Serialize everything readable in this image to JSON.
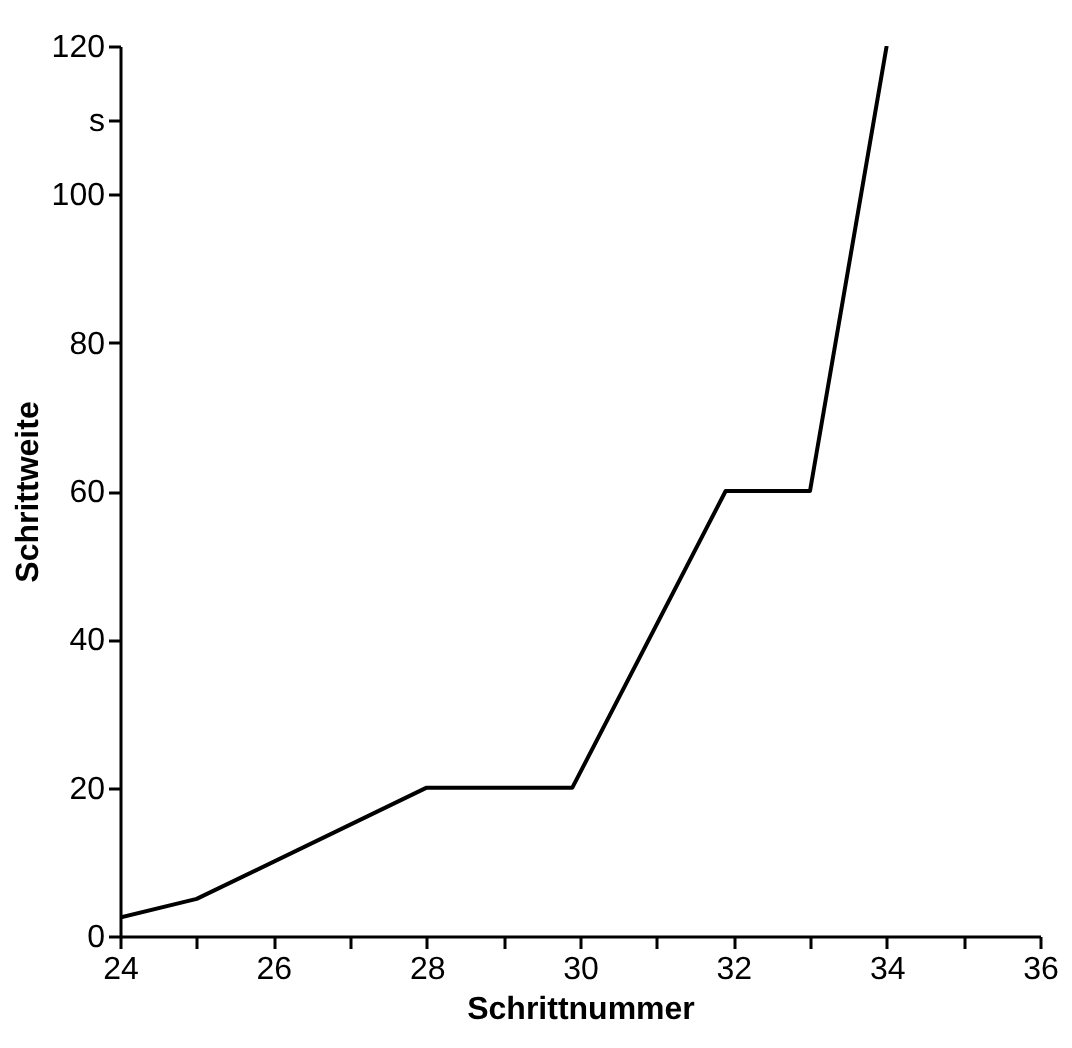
{
  "chart_data": {
    "type": "line",
    "xlabel": "Schrittnummer",
    "ylabel": "Schrittweite",
    "x": [
      24,
      25,
      28,
      29.9,
      31.9,
      33,
      34
    ],
    "series": [
      {
        "color": "#000000",
        "values": [
          2.5,
          5,
          20,
          20,
          60,
          60,
          120
        ]
      }
    ],
    "xlim": [
      24,
      36
    ],
    "ylim": [
      0,
      120
    ],
    "xticks": [
      24,
      {
        "value": 25,
        "label": null
      },
      26,
      {
        "value": 27,
        "label": null
      },
      28,
      {
        "value": 29,
        "label": null
      },
      30,
      {
        "value": 31,
        "label": null
      },
      32,
      {
        "value": 33,
        "label": null
      },
      34,
      {
        "value": 35,
        "label": null
      },
      36
    ],
    "yticks": [
      0,
      20,
      40,
      60,
      80,
      100,
      {
        "value": 110,
        "label": "s"
      },
      120
    ],
    "grid": false,
    "marker": "none",
    "line_style": "solid"
  }
}
